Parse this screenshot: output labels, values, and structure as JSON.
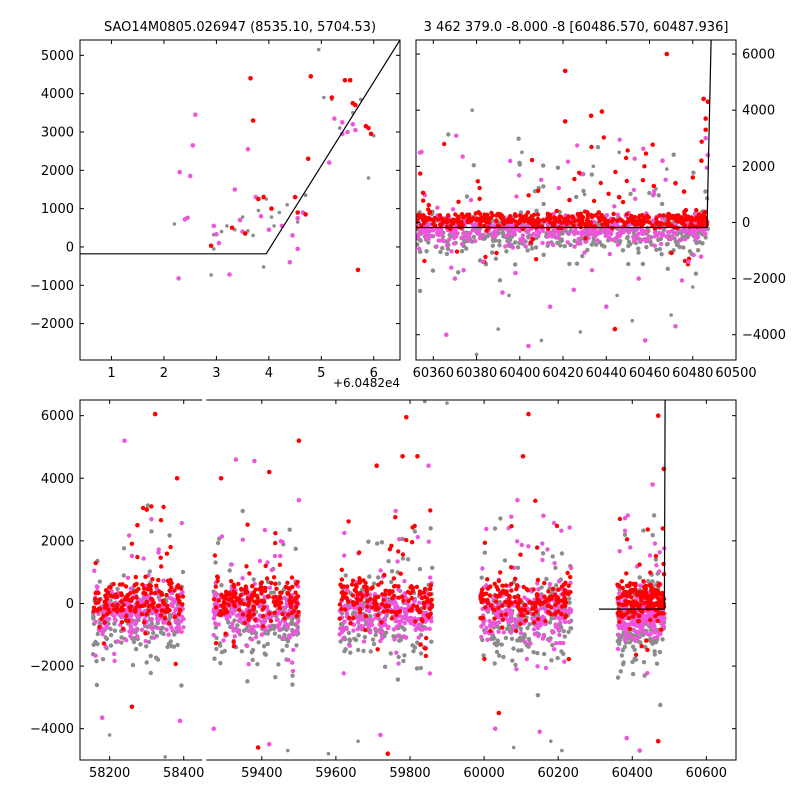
{
  "colors": {
    "gray": "#8c8c8c",
    "magenta": "#ee55dd",
    "red": "#ff0000",
    "line": "#000000"
  },
  "chart_data": [
    {
      "type": "scatter",
      "panel": "top-left",
      "title": "SAO14M0805.026947 (8535.10, 5704.53)",
      "xlim": [
        0.4,
        6.5
      ],
      "ylim": [
        -2950,
        5400
      ],
      "xticks": [
        1,
        2,
        3,
        4,
        5,
        6
      ],
      "xtick_labels": [
        "1",
        "2",
        "3",
        "4",
        "5",
        "6"
      ],
      "x_offset_label": "+6.0482e4",
      "yticks": [
        -2000,
        -1000,
        0,
        1000,
        2000,
        3000,
        4000,
        5000
      ],
      "ytick_labels": [
        "−2000",
        "−1000",
        "0",
        "1000",
        "2000",
        "3000",
        "4000",
        "5000"
      ],
      "y_axis_side": "left",
      "model_line": [
        [
          0.4,
          -180
        ],
        [
          3.95,
          -180
        ],
        [
          6.5,
          5400
        ]
      ],
      "series": [
        {
          "color": "gray",
          "points": [
            [
              2.2,
              600
            ],
            [
              2.9,
              -730
            ],
            [
              2.95,
              320
            ],
            [
              3.1,
              400
            ],
            [
              3.2,
              550
            ],
            [
              3.35,
              450
            ],
            [
              3.5,
              780
            ],
            [
              3.6,
              420
            ],
            [
              3.9,
              -520
            ],
            [
              3.8,
              950
            ],
            [
              3.95,
              1250
            ],
            [
              4.1,
              550
            ],
            [
              4.2,
              900
            ],
            [
              4.35,
              1100
            ],
            [
              4.55,
              650
            ],
            [
              4.7,
              1350
            ],
            [
              4.95,
              5150
            ],
            [
              5.05,
              3900
            ],
            [
              5.2,
              3850
            ],
            [
              5.35,
              3100
            ],
            [
              5.6,
              3500
            ],
            [
              5.75,
              3850
            ],
            [
              5.9,
              1800
            ],
            [
              6.0,
              2900
            ],
            [
              4.05,
              780
            ],
            [
              3.7,
              300
            ],
            [
              2.95,
              -50
            ]
          ]
        },
        {
          "color": "magenta",
          "points": [
            [
              2.28,
              -820
            ],
            [
              2.3,
              1950
            ],
            [
              2.4,
              720
            ],
            [
              2.45,
              760
            ],
            [
              2.5,
              1850
            ],
            [
              2.55,
              2650
            ],
            [
              2.6,
              3450
            ],
            [
              3.0,
              330
            ],
            [
              3.05,
              100
            ],
            [
              3.25,
              -720
            ],
            [
              3.35,
              1500
            ],
            [
              3.45,
              700
            ],
            [
              3.6,
              2550
            ],
            [
              3.75,
              1300
            ],
            [
              3.85,
              800
            ],
            [
              4.0,
              450
            ],
            [
              4.25,
              550
            ],
            [
              4.4,
              -400
            ],
            [
              4.45,
              300
            ],
            [
              4.55,
              750
            ],
            [
              4.65,
              900
            ],
            [
              4.55,
              -50
            ],
            [
              5.15,
              2200
            ],
            [
              5.25,
              3350
            ],
            [
              5.4,
              3250
            ],
            [
              5.5,
              3000
            ],
            [
              5.6,
              3200
            ],
            [
              5.65,
              3050
            ],
            [
              5.4,
              2950
            ],
            [
              3.5,
              400
            ],
            [
              2.95,
              550
            ]
          ]
        },
        {
          "color": "red",
          "points": [
            [
              2.9,
              30
            ],
            [
              3.55,
              350
            ],
            [
              3.65,
              4400
            ],
            [
              3.7,
              3300
            ],
            [
              3.8,
              1250
            ],
            [
              3.9,
              1300
            ],
            [
              4.05,
              1000
            ],
            [
              4.5,
              1300
            ],
            [
              4.55,
              900
            ],
            [
              4.75,
              2300
            ],
            [
              4.8,
              4450
            ],
            [
              5.2,
              3900
            ],
            [
              5.45,
              4350
            ],
            [
              5.55,
              4350
            ],
            [
              5.6,
              3750
            ],
            [
              5.65,
              3700
            ],
            [
              5.7,
              -600
            ],
            [
              5.85,
              3150
            ],
            [
              5.9,
              3100
            ],
            [
              5.95,
              2950
            ],
            [
              4.7,
              850
            ],
            [
              3.3,
              500
            ]
          ]
        }
      ]
    },
    {
      "type": "scatter",
      "panel": "top-right",
      "title": "3 462 379.0 -8.000 -8 [60486.570, 60487.936]",
      "xlim": [
        60352,
        60500
      ],
      "ylim": [
        -4900,
        6500
      ],
      "xticks": [
        60360,
        60380,
        60400,
        60420,
        60440,
        60460,
        60480,
        60500
      ],
      "xtick_labels": [
        "60360",
        "60380",
        "60400",
        "60420",
        "60440",
        "60460",
        "60480",
        "60500"
      ],
      "yticks": [
        -4000,
        -2000,
        0,
        2000,
        4000,
        6000
      ],
      "ytick_labels": [
        "−4000",
        "−2000",
        "0",
        "2000",
        "4000",
        "6000"
      ],
      "y_axis_side": "right",
      "model_line": [
        [
          60352,
          -180
        ],
        [
          60486.6,
          -180
        ],
        [
          60488.5,
          6500
        ]
      ],
      "outliers": [
        {
          "color": "gray",
          "points": [
            [
              60378,
              4000
            ],
            [
              60401,
              2500
            ],
            [
              60430,
              1000
            ],
            [
              60434,
              2000
            ],
            [
              60446,
              2500
            ],
            [
              60468,
              1900
            ],
            [
              60463,
              1200
            ],
            [
              60390,
              -3800
            ],
            [
              60410,
              -4200
            ],
            [
              60428,
              -3900
            ],
            [
              60452,
              -3500
            ],
            [
              60470,
              -3300
            ],
            [
              60380,
              -4700
            ],
            [
              60395,
              -2600
            ],
            [
              60445,
              -2600
            ],
            [
              60480,
              -2300
            ]
          ]
        },
        {
          "color": "magenta",
          "points": [
            [
              60370,
              -2000
            ],
            [
              60374,
              -1700
            ],
            [
              60383,
              -1400
            ],
            [
              60398,
              -1800
            ],
            [
              60404,
              -4400
            ],
            [
              60414,
              -3000
            ],
            [
              60425,
              -2400
            ],
            [
              60440,
              -3000
            ],
            [
              60458,
              -4200
            ],
            [
              60462,
              1000
            ],
            [
              60466,
              2200
            ],
            [
              60472,
              -3700
            ],
            [
              60486,
              3000
            ],
            [
              60487,
              2400
            ],
            [
              60366,
              -4000
            ],
            [
              60392,
              -2500
            ],
            [
              60455,
              -2000
            ],
            [
              60478,
              -1400
            ]
          ]
        },
        {
          "color": "red",
          "points": [
            [
              60421,
              5400
            ],
            [
              60421,
              3600
            ],
            [
              60433,
              3800
            ],
            [
              60438,
              3950
            ],
            [
              60444,
              -3800
            ],
            [
              60468,
              6000
            ],
            [
              60485,
              4400
            ],
            [
              60487,
              4300
            ],
            [
              60486,
              3700
            ],
            [
              60486,
              3300
            ],
            [
              60462,
              1300
            ],
            [
              60472,
              1400
            ],
            [
              60476,
              1100
            ],
            [
              60480,
              1600
            ],
            [
              60484,
              2200
            ],
            [
              60406,
              -600
            ],
            [
              60423,
              800
            ],
            [
              60446,
              900
            ]
          ]
        }
      ],
      "bands": [
        {
          "color": "gray",
          "xmin": 60352,
          "xmax": 60487,
          "ycenter": -420,
          "ysd": 470,
          "count": 430
        },
        {
          "color": "magenta",
          "xmin": 60352,
          "xmax": 60487,
          "ycenter": -220,
          "ysd": 350,
          "count": 470
        },
        {
          "color": "red",
          "xmin": 60352,
          "xmax": 60487,
          "ycenter": 80,
          "ysd": 200,
          "count": 430
        }
      ]
    },
    {
      "type": "scatter",
      "panel": "bottom",
      "title": "",
      "xlim": [
        58120,
        60680
      ],
      "ylim": [
        -5000,
        6500
      ],
      "axis_break": [
        58450,
        59250
      ],
      "break_gap": [
        58450,
        58490
      ],
      "xticks": [
        58200,
        58400,
        59400,
        59600,
        59800,
        60000,
        60200,
        60400,
        60600
      ],
      "xtick_labels": [
        "58200",
        "58400",
        "59400",
        "59600",
        "59800",
        "60000",
        "60200",
        "60400",
        "60600"
      ],
      "yticks": [
        -4000,
        -2000,
        0,
        2000,
        4000,
        6000
      ],
      "ytick_labels": [
        "−4000",
        "−2000",
        "0",
        "2000",
        "4000",
        "6000"
      ],
      "y_axis_side": "left",
      "model_line": [
        [
          60310,
          -180
        ],
        [
          60486.6,
          -180
        ],
        [
          60488.5,
          6500
        ]
      ],
      "seasons": [
        [
          58155,
          58400
        ],
        [
          59270,
          59500
        ],
        [
          59610,
          59860
        ],
        [
          59990,
          60235
        ],
        [
          60360,
          60487
        ]
      ],
      "outliers": [
        {
          "color": "red",
          "points": [
            [
              58323,
              6050
            ],
            [
              58382,
              4000
            ],
            [
              58300,
              3000
            ],
            [
              58275,
              2500
            ],
            [
              59290,
              4000
            ],
            [
              59420,
              4200
            ],
            [
              59500,
              5200
            ],
            [
              59710,
              4400
            ],
            [
              59780,
              4700
            ],
            [
              59790,
              5950
            ],
            [
              59820,
              4700
            ],
            [
              60120,
              6050
            ],
            [
              60105,
              4700
            ],
            [
              60470,
              6000
            ],
            [
              60485,
              4300
            ],
            [
              60470,
              -4400
            ],
            [
              59740,
              -4800
            ],
            [
              59390,
              -4600
            ],
            [
              60040,
              -3500
            ],
            [
              58260,
              -3300
            ]
          ]
        },
        {
          "color": "magenta",
          "points": [
            [
              58240,
              5200
            ],
            [
              59330,
              4600
            ],
            [
              59380,
              4550
            ],
            [
              59850,
              4400
            ],
            [
              59500,
              3300
            ],
            [
              60090,
              3300
            ],
            [
              60160,
              2800
            ],
            [
              60455,
              3800
            ],
            [
              58180,
              -3650
            ],
            [
              58390,
              -3750
            ],
            [
              59270,
              -4000
            ],
            [
              59420,
              -4500
            ],
            [
              59720,
              -4200
            ],
            [
              60030,
              -4000
            ],
            [
              60150,
              -4100
            ],
            [
              60420,
              -4700
            ],
            [
              60385,
              -4300
            ]
          ]
        },
        {
          "color": "gray",
          "points": [
            [
              59900,
              6400
            ],
            [
              59840,
              6450
            ],
            [
              59580,
              -4800
            ],
            [
              60080,
              -4600
            ],
            [
              60180,
              -4400
            ],
            [
              58350,
              -4900
            ],
            [
              59470,
              -4700
            ],
            [
              59660,
              -4400
            ],
            [
              60210,
              -4700
            ],
            [
              58200,
              -4200
            ]
          ]
        }
      ],
      "bands": [
        {
          "color": "gray",
          "ycenter": -520,
          "ysd": 900,
          "count": 170
        },
        {
          "color": "magenta",
          "ycenter": -300,
          "ysd": 560,
          "count": 230
        },
        {
          "color": "red",
          "ycenter": 120,
          "ysd": 480,
          "count": 170
        }
      ]
    }
  ]
}
